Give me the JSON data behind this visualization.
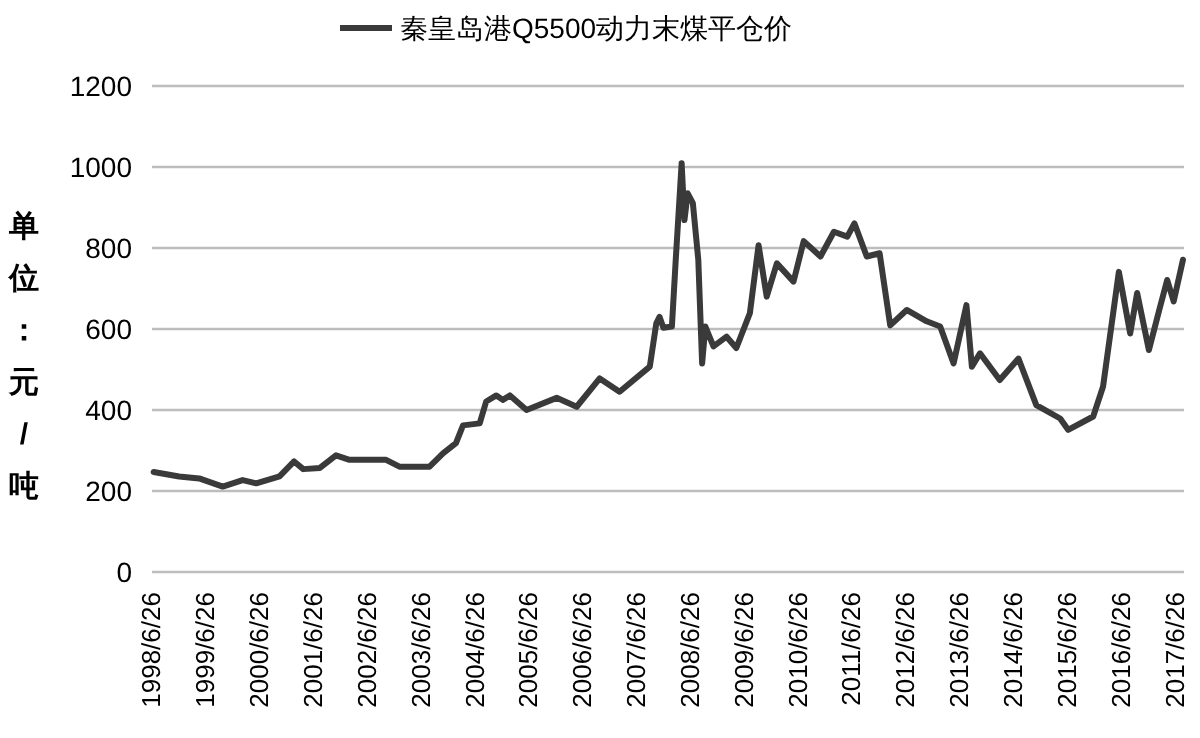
{
  "chart_data": {
    "type": "line",
    "ylabel": "单位：元/吨",
    "legend": "top",
    "grid": "y",
    "line_style": "solid",
    "marker": "none",
    "xlim": [
      "1998-06-15",
      "2017-08-15"
    ],
    "ylim": [
      0,
      1200
    ],
    "yticks": [
      0,
      200,
      400,
      600,
      800,
      1000,
      1200
    ],
    "xticks": [
      {
        "value": "1998-06-26",
        "label": "1998/6/26"
      },
      {
        "value": "1999-06-26",
        "label": "1999/6/26"
      },
      {
        "value": "2000-06-26",
        "label": "2000/6/26"
      },
      {
        "value": "2001-06-26",
        "label": "2001/6/26"
      },
      {
        "value": "2002-06-26",
        "label": "2002/6/26"
      },
      {
        "value": "2003-06-26",
        "label": "2003/6/26"
      },
      {
        "value": "2004-06-26",
        "label": "2004/6/26"
      },
      {
        "value": "2005-06-26",
        "label": "2005/6/26"
      },
      {
        "value": "2006-06-26",
        "label": "2006/6/26"
      },
      {
        "value": "2007-06-26",
        "label": "2007/6/26"
      },
      {
        "value": "2008-06-26",
        "label": "2008/6/26"
      },
      {
        "value": "2009-06-26",
        "label": "2009/6/26"
      },
      {
        "value": "2010-06-26",
        "label": "2010/6/26"
      },
      {
        "value": "2011-06-26",
        "label": "2011/6/26"
      },
      {
        "value": "2012-06-26",
        "label": "2012/6/26"
      },
      {
        "value": "2013-06-26",
        "label": "2013/6/26"
      },
      {
        "value": "2014-06-26",
        "label": "2014/6/26"
      },
      {
        "value": "2015-06-26",
        "label": "2015/6/26"
      },
      {
        "value": "2016-06-26",
        "label": "2016/6/26"
      },
      {
        "value": "2017-06-26",
        "label": "2017/6/26"
      }
    ],
    "series": [
      {
        "name": "秦皇岛港Q5500动力末煤平仓价",
        "color": "#3a3a3a",
        "x": [
          "1998-06-26",
          "1998-12-16",
          "1999-05-01",
          "1999-10-08",
          "2000-02-20",
          "2000-05-22",
          "2000-10-27",
          "2001-02-03",
          "2001-04-06",
          "2001-07-28",
          "2001-11-14",
          "2002-02-14",
          "2002-10-20",
          "2003-01-19",
          "2003-08-11",
          "2003-11-10",
          "2004-02-06",
          "2004-03-25",
          "2004-07-16",
          "2004-08-29",
          "2004-11-06",
          "2004-12-20",
          "2005-02-06",
          "2005-05-30",
          "2005-12-20",
          "2006-05-05",
          "2006-10-08",
          "2007-02-20",
          "2007-09-13",
          "2007-10-27",
          "2007-11-18",
          "2007-12-14",
          "2008-02-10",
          "2008-03-07",
          "2008-04-16",
          "2008-05-05",
          "2008-05-27",
          "2008-07-01",
          "2008-08-07",
          "2008-09-02",
          "2008-09-24",
          "2008-11-18",
          "2009-02-15",
          "2009-04-22",
          "2009-07-23",
          "2009-09-20",
          "2009-11-14",
          "2010-01-22",
          "2010-05-15",
          "2010-07-23",
          "2010-11-14",
          "2011-02-13",
          "2011-05-15",
          "2011-07-02",
          "2011-09-24",
          "2011-12-20",
          "2012-03-01",
          "2012-06-21",
          "2012-11-03",
          "2013-02-03",
          "2013-05-05",
          "2013-07-31",
          "2013-09-06",
          "2013-10-31",
          "2014-03-14",
          "2014-07-19",
          "2014-11-17",
          "2015-04-28",
          "2015-06-21",
          "2015-12-08",
          "2016-02-13",
          "2016-05-30",
          "2016-08-15",
          "2016-10-01",
          "2016-12-20",
          "2017-02-28",
          "2017-04-23",
          "2017-06-06",
          "2017-08-08"
        ],
        "values": [
          247,
          236,
          231,
          211,
          227,
          219,
          236,
          273,
          254,
          257,
          288,
          277,
          277,
          260,
          260,
          293,
          318,
          362,
          367,
          421,
          436,
          425,
          436,
          400,
          430,
          408,
          478,
          445,
          507,
          614,
          630,
          603,
          606,
          771,
          1009,
          869,
          935,
          911,
          771,
          515,
          606,
          557,
          581,
          553,
          639,
          807,
          680,
          762,
          717,
          817,
          779,
          840,
          828,
          861,
          779,
          787,
          609,
          647,
          619,
          606,
          515,
          659,
          507,
          540,
          474,
          527,
          412,
          379,
          351,
          384,
          458,
          741,
          589,
          689,
          548,
          647,
          721,
          668,
          771
        ]
      }
    ]
  }
}
